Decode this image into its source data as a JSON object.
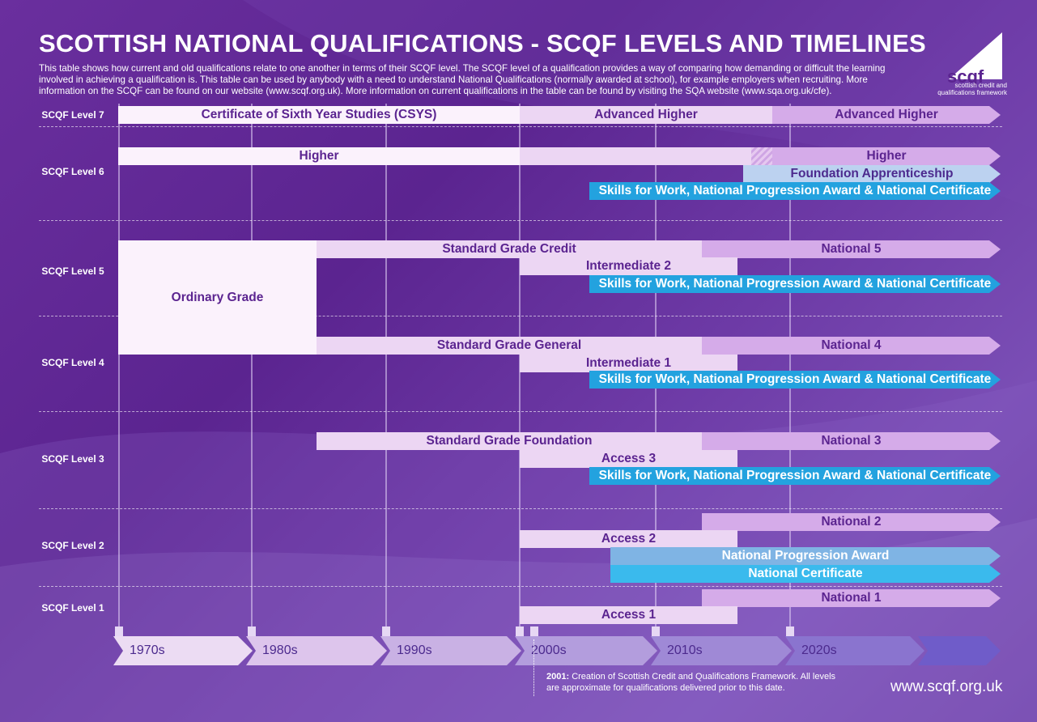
{
  "title": "SCOTTISH NATIONAL QUALIFICATIONS - SCQF LEVELS AND TIMELINES",
  "intro": "This table shows how current and old qualifications relate to one another in terms of their SCQF level. The SCQF level of a qualification provides a way of comparing how demanding or difficult the learning involved in achieving a qualification is. This table can be used by anybody with a need to understand National Qualifications (normally awarded at school), for example employers when recruiting. More information on the SCQF can be found on our website (www.scqf.org.uk). More information on current qualifications in the table can be found by visiting the SQA website (www.sqa.org.uk/cfe).",
  "logo": {
    "word": "scqf",
    "sub": "scottish credit and qualifications framework"
  },
  "levels": {
    "l7": "SCQF Level 7",
    "l6": "SCQF Level 6",
    "l5": "SCQF Level 5",
    "l4": "SCQF Level 4",
    "l3": "SCQF Level 3",
    "l2": "SCQF Level 2",
    "l1": "SCQF Level 1"
  },
  "quals": {
    "csys": "Certificate of Sixth Year Studies (CSYS)",
    "adv_higher_1": "Advanced Higher",
    "adv_higher_2": "Advanced Higher",
    "higher_old": "Higher",
    "higher_new": "Higher",
    "foundation_app": "Foundation Apprenticeship",
    "skills_l6": "Skills for Work, National Progression Award & National Certificate",
    "sg_credit": "Standard Grade Credit",
    "national5": "National 5",
    "intermediate2": "Intermediate 2",
    "skills_l5": "Skills for Work, National Progression Award & National Certificate",
    "ordinary_grade": "Ordinary Grade",
    "sg_general": "Standard Grade General",
    "national4": "National 4",
    "intermediate1": "Intermediate 1",
    "skills_l4": "Skills for Work, National Progression Award & National Certificate",
    "sg_foundation": "Standard Grade Foundation",
    "national3": "National 3",
    "access3": "Access 3",
    "skills_l3": "Skills for Work, National Progression Award & National Certificate",
    "national2": "National 2",
    "access2": "Access 2",
    "npa": "National Progression Award",
    "nat_cert": "National Certificate",
    "national1": "National 1",
    "access1": "Access 1"
  },
  "decades": [
    "1970s",
    "1980s",
    "1990s",
    "2000s",
    "2010s",
    "2020s"
  ],
  "note": {
    "year": "2001:",
    "text": " Creation of Scottish Credit and Qualifications Framework. All levels are approximate for qualifications delivered prior to this date."
  },
  "url": "www.scqf.org.uk"
}
